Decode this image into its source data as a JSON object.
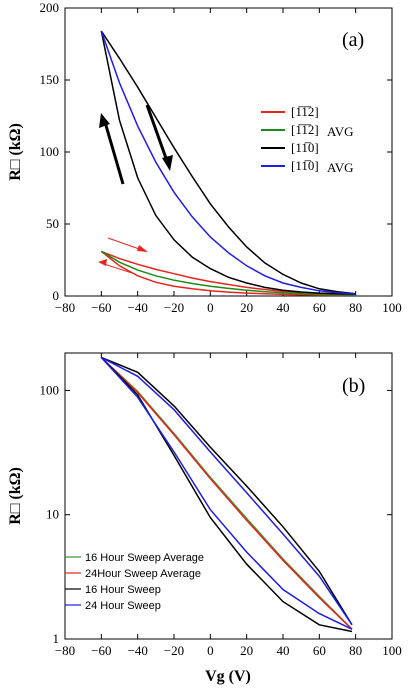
{
  "chart_data": [
    {
      "type": "line",
      "panel_label": "(a)",
      "xlabel": "",
      "ylabel": "R□ (kΩ)",
      "xlim": [
        -80,
        100
      ],
      "ylim": [
        0,
        200
      ],
      "xticks": [
        -80,
        -60,
        -40,
        -20,
        0,
        20,
        40,
        60,
        80,
        100
      ],
      "yticks": [
        0,
        50,
        100,
        150,
        200
      ],
      "legend_position": "right",
      "series": [
        {
          "name": "[̅1̅1 2]",
          "label_main": "[1̅1̅2]",
          "label_sub": "",
          "color": "#e8241e",
          "loop": true,
          "x": [
            -60,
            -50,
            -40,
            -30,
            -20,
            -10,
            0,
            10,
            20,
            30,
            40,
            50,
            60,
            70,
            80
          ],
          "y_up": [
            31,
            26,
            22,
            18.5,
            15.5,
            12.5,
            10,
            8,
            6,
            4.5,
            3.2,
            2.2,
            1.5,
            1,
            0.6
          ],
          "y_down": [
            31,
            21,
            14,
            9.5,
            6.8,
            5,
            3.7,
            2.7,
            2,
            1.5,
            1.1,
            0.8,
            0.6,
            0.5,
            0.5
          ]
        },
        {
          "name": "AVG1",
          "label_main": "[1̅1̅2]",
          "label_sub": "AVG",
          "color": "#1a8c1a",
          "loop": false,
          "x": [
            -60,
            -50,
            -40,
            -30,
            -20,
            -10,
            0,
            10,
            20,
            30,
            40,
            50,
            60,
            70,
            80
          ],
          "y": [
            31,
            23.5,
            18,
            14,
            11,
            8.7,
            6.8,
            5.3,
            4,
            3,
            2.2,
            1.6,
            1.1,
            0.8,
            0.6
          ]
        },
        {
          "name": "[1̅1 0]",
          "label_main": "[11̅0]",
          "label_sub": "",
          "color": "#000000",
          "loop": true,
          "x": [
            -60,
            -50,
            -40,
            -30,
            -20,
            -10,
            0,
            10,
            20,
            30,
            40,
            50,
            60,
            70,
            80
          ],
          "y_up": [
            184,
            165,
            145,
            124,
            103,
            83,
            64,
            48,
            34,
            23,
            15,
            9,
            5,
            3,
            1.5
          ],
          "y_down": [
            184,
            122,
            82,
            56,
            39,
            27,
            19,
            13,
            9,
            6,
            4,
            2.8,
            2,
            1.5,
            1.2
          ]
        },
        {
          "name": "AVG2",
          "label_main": "[11̅0]",
          "label_sub": "AVG",
          "color": "#1d1de8",
          "loop": false,
          "x": [
            -60,
            -50,
            -40,
            -30,
            -20,
            -10,
            0,
            10,
            20,
            30,
            40,
            50,
            60,
            70,
            80
          ],
          "y": [
            184,
            148,
            118,
            93,
            72,
            55,
            41,
            30,
            21,
            14,
            9,
            6,
            3.6,
            2.2,
            1.3
          ]
        }
      ]
    },
    {
      "type": "line",
      "panel_label": "(b)",
      "xlabel": "Vg (V)",
      "ylabel": "R□ (kΩ)",
      "yscale": "log",
      "xlim": [
        -80,
        100
      ],
      "ylim": [
        1,
        200
      ],
      "xticks": [
        -80,
        -60,
        -40,
        -20,
        0,
        20,
        40,
        60,
        80,
        100
      ],
      "yticks": [
        1,
        10,
        100
      ],
      "legend_position": "bottom-left",
      "series": [
        {
          "name": "16 Hour Sweep Average",
          "color": "#2e9a2e",
          "loop": false,
          "x": [
            -60,
            -40,
            -20,
            0,
            20,
            40,
            60,
            78
          ],
          "y": [
            184,
            98,
            45,
            20,
            9.3,
            4.4,
            2.2,
            1.2
          ]
        },
        {
          "name": "24Hour Sweep Average",
          "color": "#e8241e",
          "loop": false,
          "x": [
            -60,
            -40,
            -20,
            0,
            20,
            40,
            60,
            78
          ],
          "y": [
            184,
            96,
            44,
            19.5,
            9,
            4.3,
            2.15,
            1.2
          ]
        },
        {
          "name": "16 Hour Sweep",
          "color": "#000000",
          "loop": true,
          "x": [
            -60,
            -40,
            -20,
            0,
            20,
            40,
            60,
            78
          ],
          "y_up": [
            184,
            140,
            75,
            35,
            17,
            8,
            3.5,
            1.3
          ],
          "y_down": [
            184,
            92,
            30,
            9.5,
            4,
            2,
            1.3,
            1.15
          ]
        },
        {
          "name": "24 Hour Sweep",
          "color": "#1d1de8",
          "loop": true,
          "x": [
            -60,
            -40,
            -20,
            0,
            20,
            40,
            60,
            78
          ],
          "y_up": [
            184,
            130,
            70,
            32,
            15,
            7,
            3.2,
            1.3
          ],
          "y_down": [
            184,
            88,
            32,
            11,
            5,
            2.5,
            1.6,
            1.2
          ]
        }
      ]
    }
  ]
}
